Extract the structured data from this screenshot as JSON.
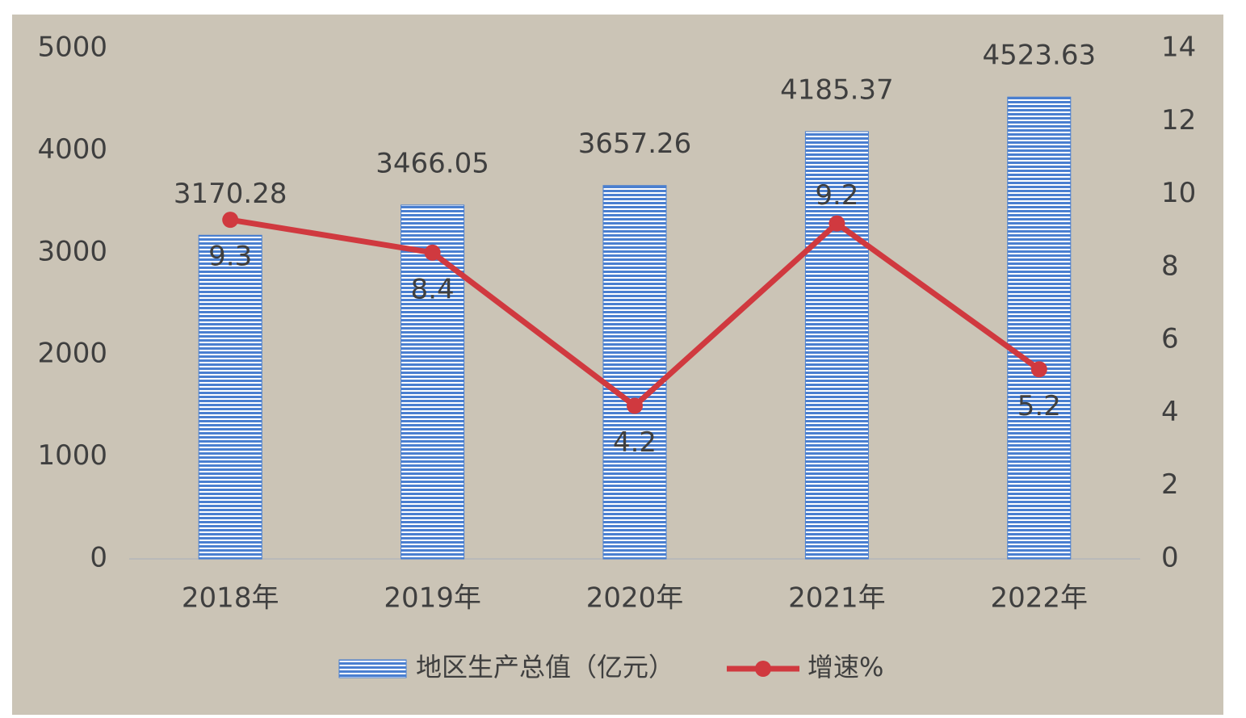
{
  "chart_data": {
    "type": "bar",
    "categories": [
      "2018年",
      "2019年",
      "2020年",
      "2021年",
      "2022年"
    ],
    "series": [
      {
        "name": "地区生产总值（亿元）",
        "color": "#4a7fd0",
        "values": [
          3170.28,
          3466.05,
          3657.26,
          4185.37,
          4523.63
        ]
      },
      {
        "name": "增速%",
        "type": "line",
        "axis": "y2",
        "color": "#d0393f",
        "values": [
          9.3,
          8.4,
          4.2,
          9.2,
          5.2
        ]
      }
    ],
    "ylim": [
      0,
      5000
    ],
    "yticks": [
      0,
      1000,
      2000,
      3000,
      4000,
      5000
    ],
    "y2lim": [
      0,
      14
    ],
    "y2ticks": [
      0,
      2,
      4,
      6,
      8,
      10,
      12,
      14
    ],
    "legend": "bottom"
  }
}
